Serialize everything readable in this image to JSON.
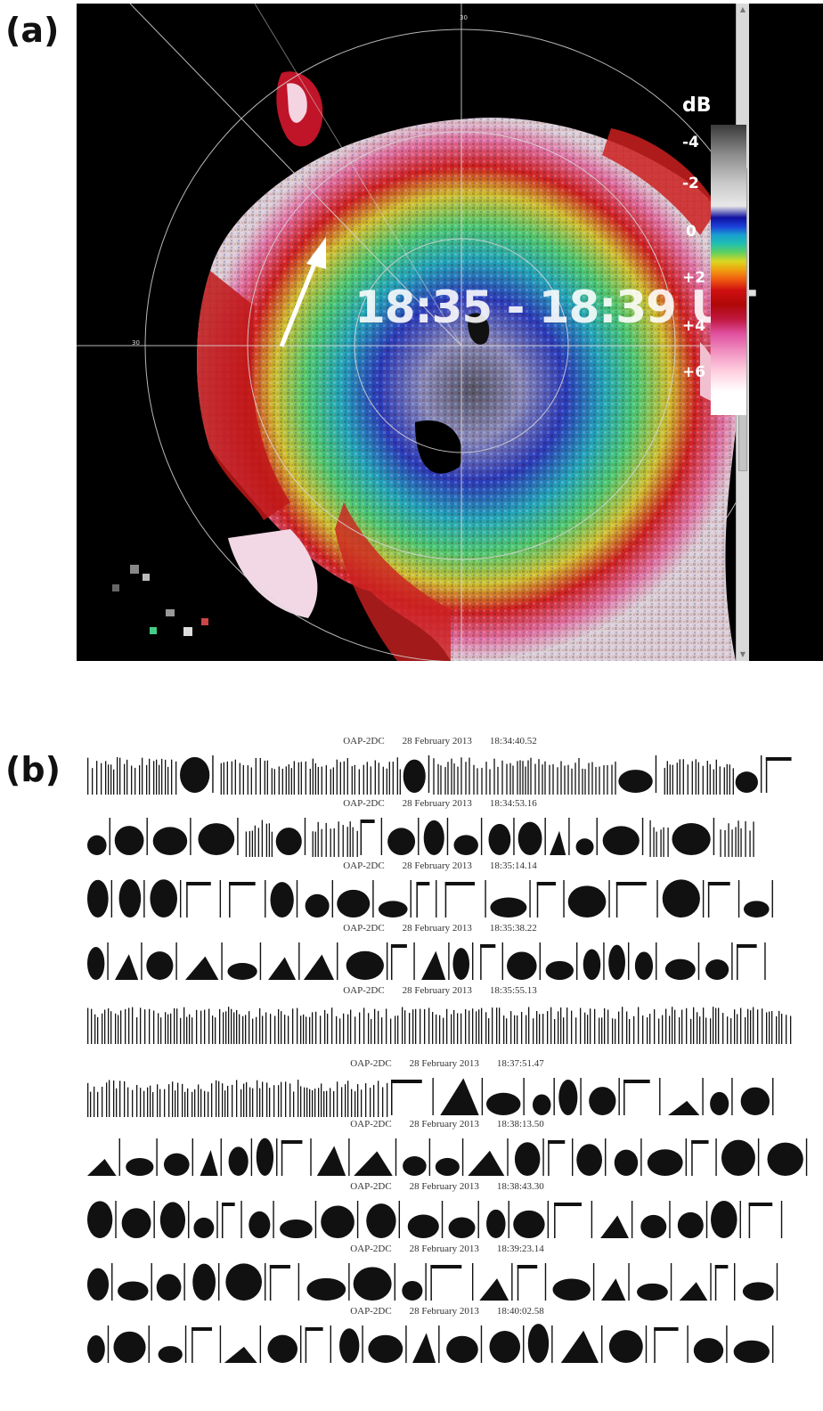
{
  "panel_labels": {
    "a": "(a)",
    "b": "(b)"
  },
  "radar": {
    "time_label": "18:35 - 18:39 UT",
    "range_label": "30",
    "colorbar": {
      "unit": "dB",
      "ticks": [
        "-4",
        "-2",
        "0",
        "+2",
        "+4",
        "+6"
      ]
    }
  },
  "probe_strips": [
    {
      "instrument": "OAP-2DC",
      "date": "28 February 2013",
      "time": "18:34:40.52"
    },
    {
      "instrument": "OAP-2DC",
      "date": "28 February 2013",
      "time": "18:34:53.16"
    },
    {
      "instrument": "OAP-2DC",
      "date": "28 February 2013",
      "time": "18:35:14.14"
    },
    {
      "instrument": "OAP-2DC",
      "date": "28 February 2013",
      "time": "18:35:38.22"
    },
    {
      "instrument": "OAP-2DC",
      "date": "28 February 2013",
      "time": "18:35:55.13"
    },
    {
      "instrument": "OAP-2DC",
      "date": "28 February 2013",
      "time": "18:37:51.47"
    },
    {
      "instrument": "OAP-2DC",
      "date": "28 February 2013",
      "time": "18:38:13.50"
    },
    {
      "instrument": "OAP-2DC",
      "date": "28 February 2013",
      "time": "18:38:43.30"
    },
    {
      "instrument": "OAP-2DC",
      "date": "28 February 2013",
      "time": "18:39:23.14"
    },
    {
      "instrument": "OAP-2DC",
      "date": "28 February 2013",
      "time": "18:40:02.58"
    }
  ]
}
